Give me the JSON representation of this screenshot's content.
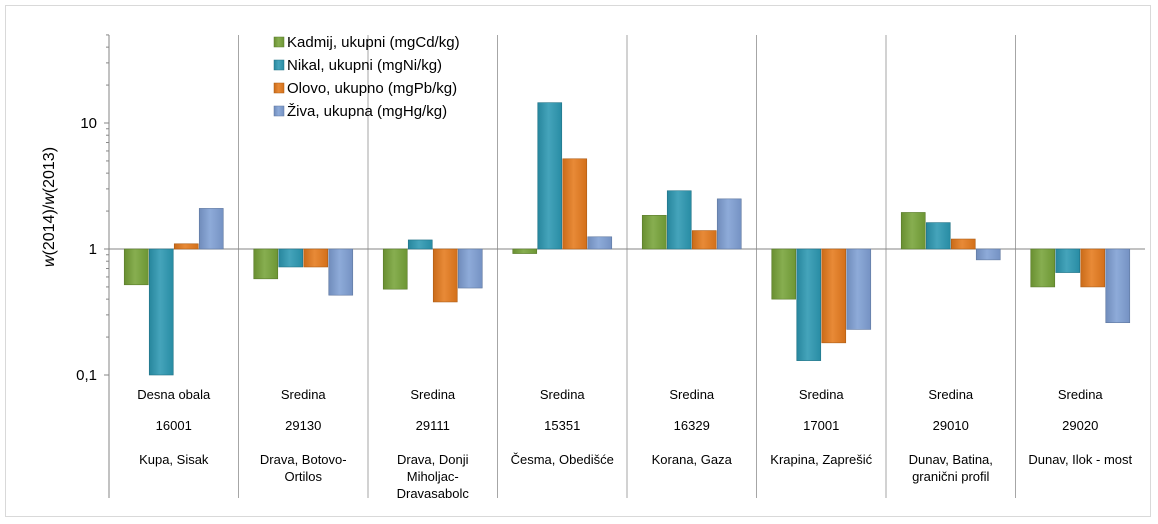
{
  "chart_data": {
    "type": "bar",
    "yscale": "log",
    "baseline": 1,
    "ylim": [
      0.1,
      50
    ],
    "yticks": [
      {
        "value": 0.1,
        "label": "0,1"
      },
      {
        "value": 1,
        "label": "1"
      },
      {
        "value": 10,
        "label": "10"
      }
    ],
    "ylabel_parts": [
      {
        "text": "w",
        "italic": true
      },
      {
        "text": "(2014)/",
        "italic": false
      },
      {
        "text": "w",
        "italic": true
      },
      {
        "text": "(2013)",
        "italic": false
      }
    ],
    "grid": false,
    "legend_position": "top-center",
    "categories": [
      {
        "position": "Desna obala",
        "code": "16001",
        "name": [
          "Kupa, Sisak"
        ]
      },
      {
        "position": "Sredina",
        "code": "29130",
        "name": [
          "Drava, Botovo-",
          "Ortilos"
        ]
      },
      {
        "position": "Sredina",
        "code": "29111",
        "name": [
          "Drava, Donji",
          "Miholjac-",
          "Dravasabolc"
        ]
      },
      {
        "position": "Sredina",
        "code": "15351",
        "name": [
          "Česma, Obedišće"
        ]
      },
      {
        "position": "Sredina",
        "code": "16329",
        "name": [
          "Korana, Gaza"
        ]
      },
      {
        "position": "Sredina",
        "code": "17001",
        "name": [
          "Krapina, Zaprešić"
        ]
      },
      {
        "position": "Sredina",
        "code": "29010",
        "name": [
          "Dunav, Batina,",
          "granični profil"
        ]
      },
      {
        "position": "Sredina",
        "code": "29020",
        "name": [
          "Dunav, Ilok - most"
        ]
      }
    ],
    "series": [
      {
        "name": "Kadmij, ukupni (mgCd/kg)",
        "color": "#77a338",
        "values": [
          0.52,
          0.58,
          0.48,
          0.92,
          1.85,
          0.4,
          1.95,
          0.5
        ]
      },
      {
        "name": "Nikal, ukupni (mgNi/kg)",
        "color": "#2c98b2",
        "values": [
          0.1,
          0.72,
          1.18,
          14.5,
          2.9,
          0.13,
          1.62,
          0.65
        ]
      },
      {
        "name": "Olovo, ukupno (mgPb/kg)",
        "color": "#e57a1c",
        "values": [
          1.1,
          0.72,
          0.38,
          5.2,
          1.4,
          0.18,
          1.2,
          0.5
        ]
      },
      {
        "name": "Živa, ukupna (mgHg/kg)",
        "color": "#7f9fd4",
        "values": [
          2.1,
          0.43,
          0.49,
          1.25,
          2.5,
          0.23,
          0.82,
          0.26
        ]
      }
    ]
  }
}
